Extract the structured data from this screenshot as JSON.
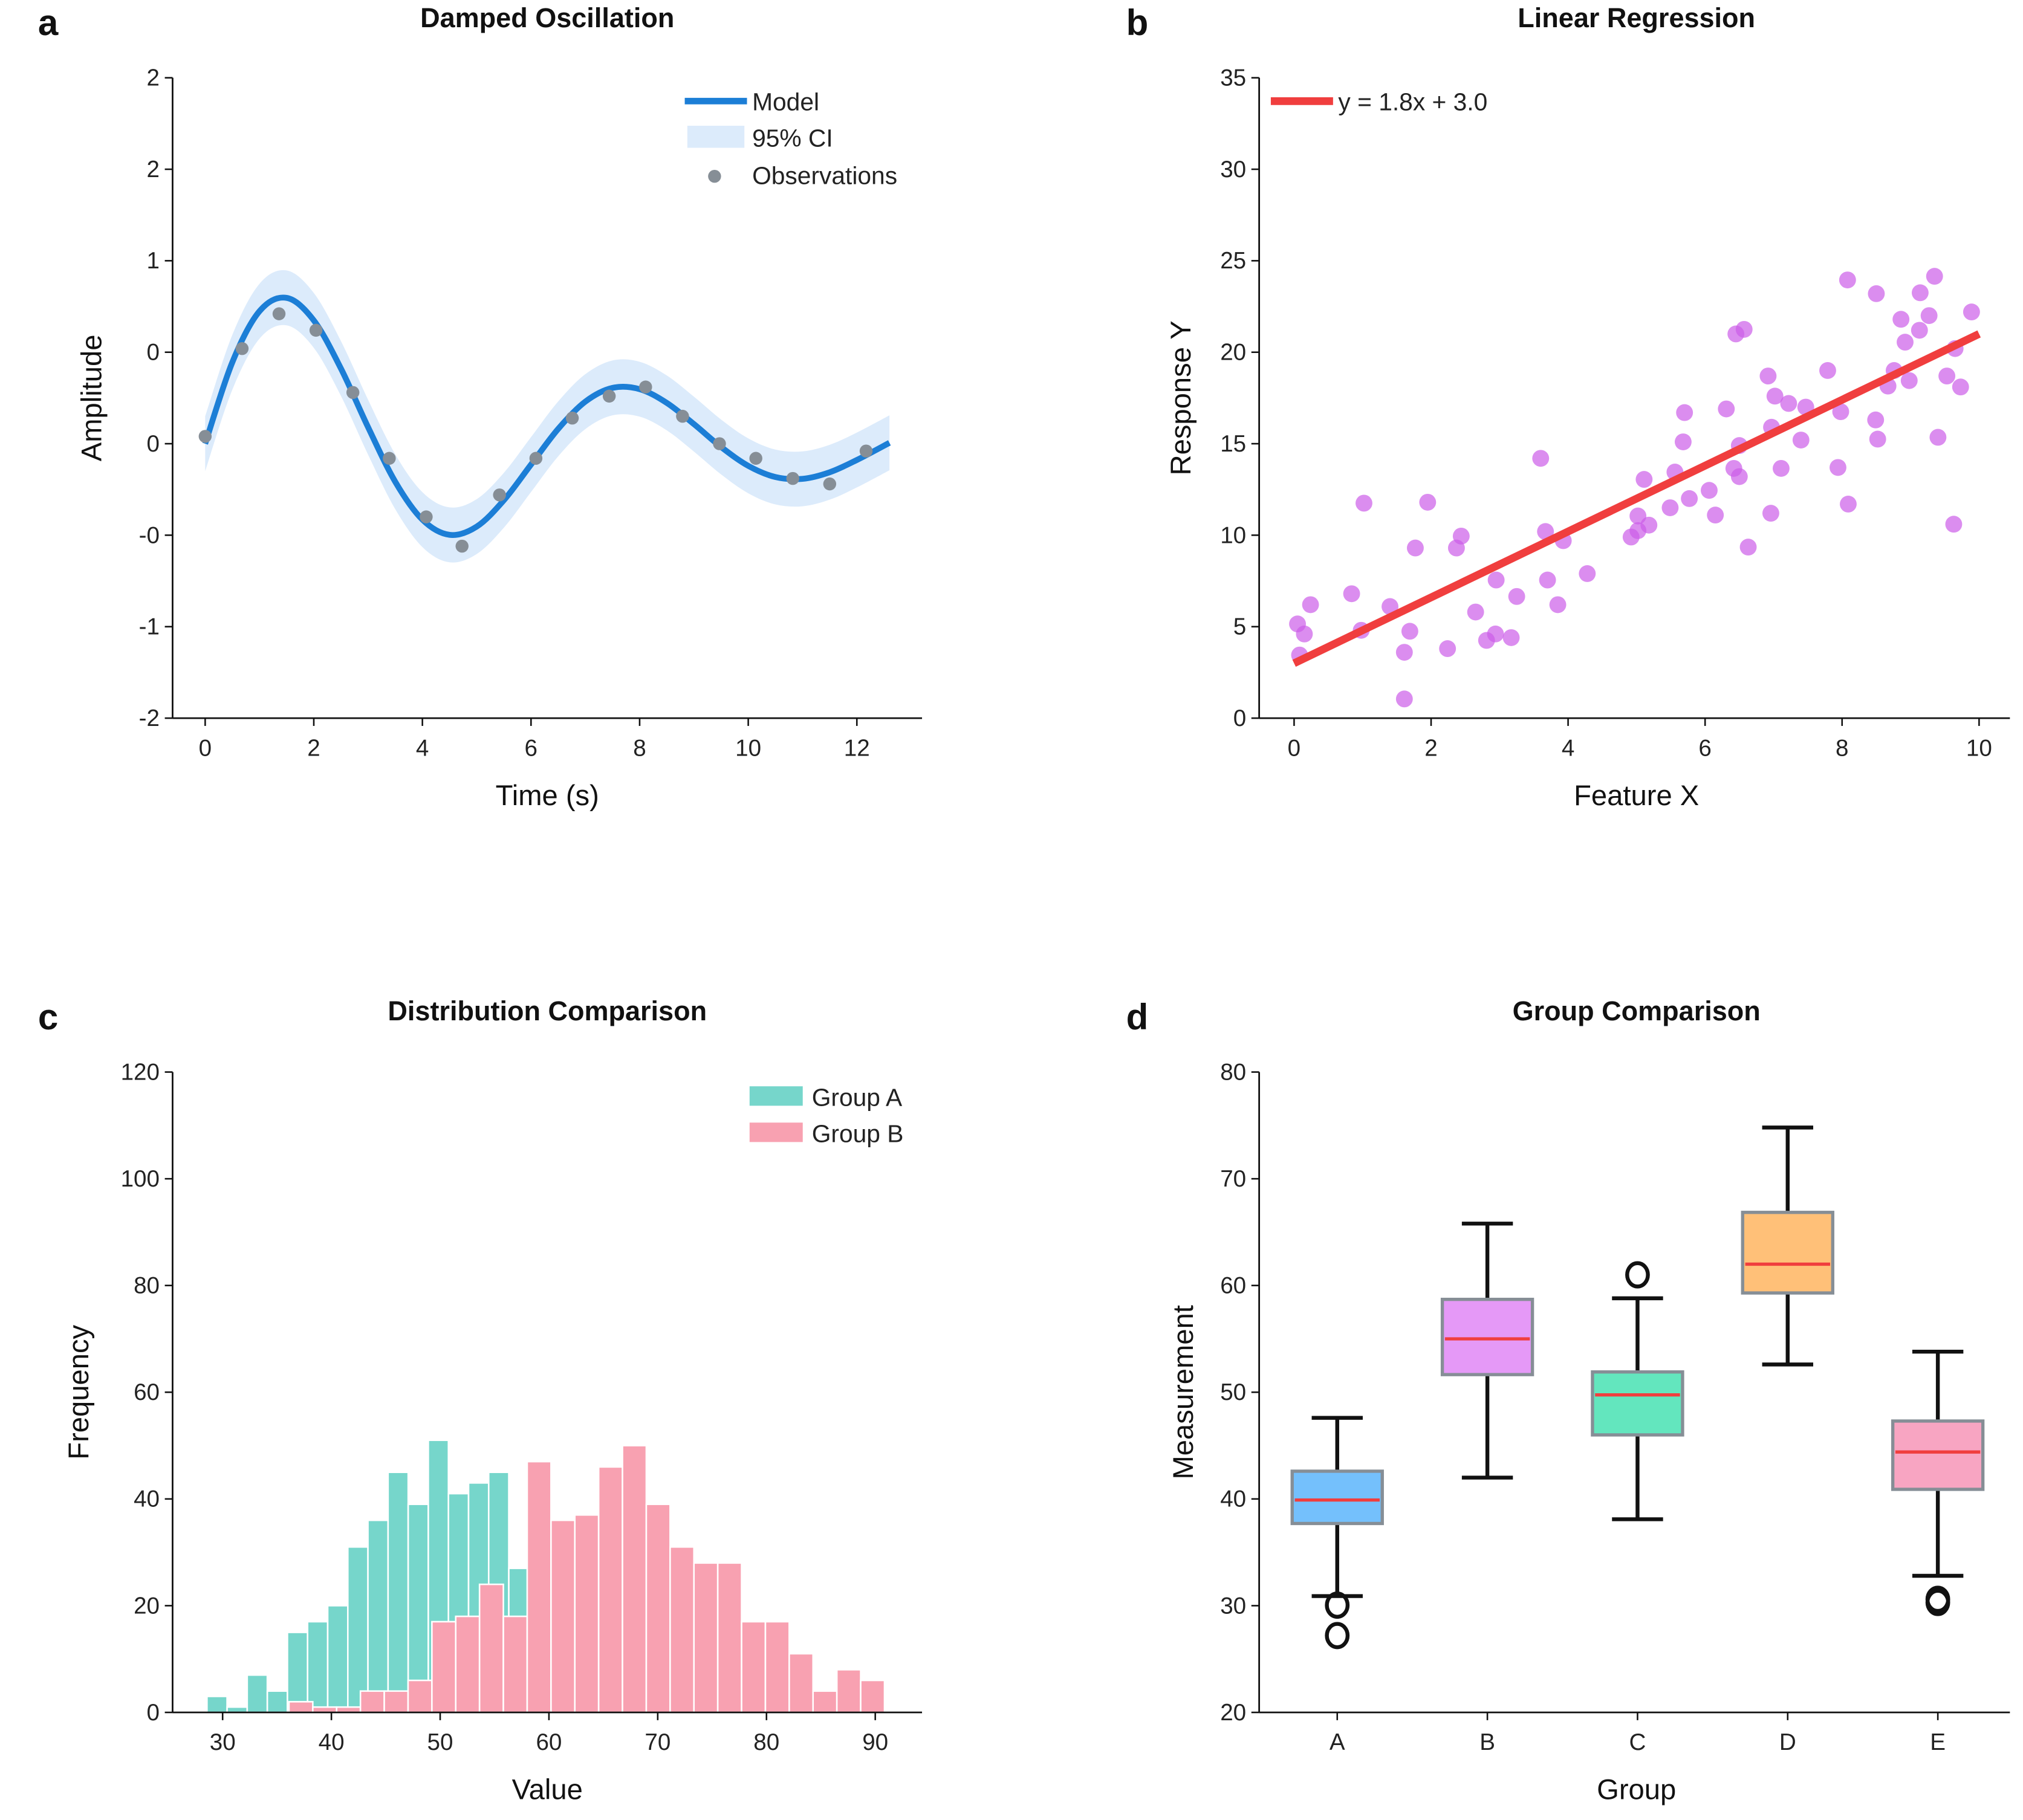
{
  "chart_data": [
    {
      "panel_letter": "a",
      "type": "line",
      "title": "Damped Oscillation",
      "xlabel": "Time (s)",
      "ylabel": "Amplitude",
      "xlim": [
        -0.6,
        13.2
      ],
      "ylim": [
        -1.5,
        2.0
      ],
      "xticks": [
        0,
        2,
        4,
        6,
        8,
        10,
        12
      ],
      "xticklabels": [
        "0",
        "2",
        "4",
        "6",
        "8",
        "10",
        "12"
      ],
      "yticks": [
        2.0,
        1.5,
        1.0,
        0.5,
        0.0,
        -0.5,
        -1.0,
        -1.5
      ],
      "yticklabels": [
        "2",
        "2",
        "1",
        "0",
        "0",
        "-0",
        "-1",
        "-2"
      ],
      "legend_position": "top-right",
      "grid": false,
      "series": [
        {
          "name": "Model",
          "kind": "line",
          "color": "#1c7ed6",
          "x": [
            0,
            0.5,
            1,
            1.5,
            2,
            2.5,
            3,
            3.5,
            4,
            4.5,
            5,
            5.5,
            6,
            6.5,
            7,
            7.5,
            8,
            8.5,
            9,
            9.5,
            10,
            10.5,
            11,
            11.5,
            12,
            12.6
          ],
          "y": [
            0,
            0.445,
            0.724,
            0.797,
            0.674,
            0.411,
            0.09,
            -0.208,
            -0.415,
            -0.498,
            -0.453,
            -0.309,
            -0.114,
            0.081,
            0.23,
            0.305,
            0.298,
            0.223,
            0.107,
            -0.018,
            -0.121,
            -0.182,
            -0.192,
            -0.156,
            -0.089,
            0.005
          ]
        },
        {
          "name": "95% CI",
          "kind": "band",
          "color": "#dcebfb",
          "halfwidth": 0.15
        },
        {
          "name": "Observations",
          "kind": "scatter",
          "color": "#868e96",
          "x": [
            0,
            0.68,
            1.36,
            2.04,
            2.72,
            3.39,
            4.07,
            4.73,
            5.42,
            6.09,
            6.76,
            7.44,
            8.11,
            8.79,
            9.47,
            10.14,
            10.82,
            11.5,
            12.17
          ],
          "y": [
            0.04,
            0.52,
            0.71,
            0.62,
            0.28,
            -0.08,
            -0.4,
            -0.56,
            -0.28,
            -0.08,
            0.14,
            0.26,
            0.31,
            0.15,
            0.0,
            -0.08,
            -0.19,
            -0.22,
            -0.04
          ]
        }
      ]
    },
    {
      "panel_letter": "b",
      "type": "scatter",
      "title": "Linear Regression",
      "xlabel": "Feature X",
      "ylabel": "Response Y",
      "xlim": [
        -0.51,
        10.45
      ],
      "ylim": [
        0,
        35
      ],
      "xticks": [
        0,
        2,
        4,
        6,
        8,
        10
      ],
      "xticklabels": [
        "0",
        "2",
        "4",
        "6",
        "8",
        "10"
      ],
      "yticks": [
        0,
        5,
        10,
        15,
        20,
        25,
        30,
        35
      ],
      "yticklabels": [
        "0",
        "5",
        "10",
        "15",
        "20",
        "25",
        "30",
        "35"
      ],
      "legend_position": "top-left",
      "grid": false,
      "scatter_color": "#cc5de8",
      "points_x": [
        0.05,
        0.15,
        0.08,
        0.24,
        0.84,
        0.98,
        1.02,
        1.4,
        1.61,
        1.61,
        1.69,
        1.77,
        1.95,
        2.24,
        2.37,
        2.44,
        2.65,
        2.81,
        2.94,
        2.95,
        3.17,
        3.25,
        3.6,
        3.67,
        3.7,
        3.85,
        3.93,
        4.28,
        4.92,
        5.02,
        5.02,
        5.11,
        5.18,
        5.49,
        5.56,
        5.68,
        5.7,
        5.77,
        6.06,
        6.15,
        6.31,
        6.42,
        6.5,
        6.5,
        6.45,
        6.57,
        6.63,
        6.92,
        6.96,
        6.97,
        7.02,
        7.11,
        7.22,
        7.4,
        7.47,
        7.79,
        7.94,
        7.98,
        8.09,
        8.08,
        8.49,
        8.52,
        8.5,
        8.67,
        8.76,
        8.86,
        8.92,
        8.98,
        9.13,
        9.14,
        9.27,
        9.35,
        9.4,
        9.53,
        9.63,
        9.65,
        9.73,
        9.89
      ],
      "points_y": [
        5.15,
        4.6,
        3.45,
        6.2,
        6.8,
        4.8,
        11.75,
        6.1,
        3.6,
        1.05,
        4.75,
        9.3,
        11.8,
        3.8,
        9.3,
        9.95,
        5.8,
        4.25,
        4.6,
        7.55,
        4.4,
        6.65,
        14.2,
        10.2,
        7.55,
        6.2,
        9.7,
        7.9,
        9.9,
        10.25,
        11.05,
        13.05,
        10.55,
        11.5,
        13.45,
        15.1,
        16.7,
        12.0,
        12.45,
        11.1,
        16.9,
        13.65,
        13.2,
        14.9,
        21.0,
        21.25,
        9.35,
        18.7,
        11.2,
        15.9,
        17.6,
        13.65,
        17.2,
        15.2,
        17.0,
        19.0,
        13.7,
        16.75,
        11.7,
        23.95,
        16.3,
        15.25,
        23.2,
        18.15,
        19.0,
        21.8,
        20.55,
        18.45,
        21.2,
        23.25,
        22.0,
        24.15,
        15.35,
        18.7,
        10.6,
        20.2,
        18.1,
        22.2
      ],
      "fit": {
        "name": "y = 1.8x + 3.0",
        "slope": 1.8,
        "intercept": 3.0,
        "x_range": [
          0,
          10
        ],
        "color": "#f03e3e"
      }
    },
    {
      "panel_letter": "c",
      "type": "bar",
      "title": "Distribution Comparison",
      "xlabel": "Value",
      "ylabel": "Frequency",
      "xlim": [
        25.4,
        94.3
      ],
      "ylim": [
        0,
        120
      ],
      "xticks": [
        30,
        40,
        50,
        60,
        70,
        80,
        90
      ],
      "xticklabels": [
        "30",
        "40",
        "50",
        "60",
        "70",
        "80",
        "90"
      ],
      "yticks": [
        0,
        20,
        40,
        60,
        80,
        100,
        120
      ],
      "yticklabels": [
        "0",
        "20",
        "40",
        "60",
        "80",
        "100",
        "120"
      ],
      "legend_position": "top-right",
      "grid": false,
      "series": [
        {
          "name": "Group A",
          "color": "#76d6cb",
          "bin_start": 28.56,
          "bin_width": 1.85,
          "values": [
            3,
            1,
            7,
            4,
            15,
            17,
            20,
            31,
            36,
            45,
            39,
            51,
            41,
            43,
            45,
            27
          ]
        },
        {
          "name": "Group B",
          "color": "#f8a1b1",
          "bin_start": 36.1,
          "bin_width": 2.19,
          "values": [
            2,
            1,
            1,
            4,
            4,
            6,
            17,
            18,
            24,
            18,
            47,
            36,
            37,
            46,
            50,
            39,
            31,
            28,
            28,
            17,
            17,
            11,
            4,
            8,
            6
          ]
        }
      ]
    },
    {
      "panel_letter": "d",
      "type": "box",
      "title": "Group Comparison",
      "xlabel": "Group",
      "ylabel": "Measurement",
      "xlim": [
        -0.52,
        4.48
      ],
      "ylim": [
        20,
        80
      ],
      "yticks": [
        20,
        30,
        40,
        50,
        60,
        70,
        80
      ],
      "yticklabels": [
        "20",
        "30",
        "40",
        "50",
        "60",
        "70",
        "80"
      ],
      "categories": [
        "A",
        "B",
        "C",
        "D",
        "E"
      ],
      "grid": false,
      "median_color": "#f03e3e",
      "box_edge_color": "#868e96",
      "boxes": [
        {
          "whisker_low": 30.9,
          "q1": 37.7,
          "median": 39.9,
          "q3": 42.6,
          "whisker_high": 47.6,
          "outliers": [
            30.05,
            27.2
          ],
          "color": "#74c0fc"
        },
        {
          "whisker_low": 42.0,
          "q1": 51.65,
          "median": 55.0,
          "q3": 58.7,
          "whisker_high": 65.8,
          "outliers": [],
          "color": "#e599f7"
        },
        {
          "whisker_low": 38.1,
          "q1": 46.0,
          "median": 49.75,
          "q3": 51.9,
          "whisker_high": 58.8,
          "outliers": [
            61.0
          ],
          "color": "#63e6be"
        },
        {
          "whisker_low": 52.6,
          "q1": 59.3,
          "median": 62.0,
          "q3": 66.85,
          "whisker_high": 74.8,
          "outliers": [],
          "color": "#ffc078"
        },
        {
          "whisker_low": 32.8,
          "q1": 40.9,
          "median": 44.4,
          "q3": 47.3,
          "whisker_high": 53.8,
          "outliers": [
            30.6,
            30.3
          ],
          "color": "#f8a5c2"
        }
      ]
    }
  ]
}
